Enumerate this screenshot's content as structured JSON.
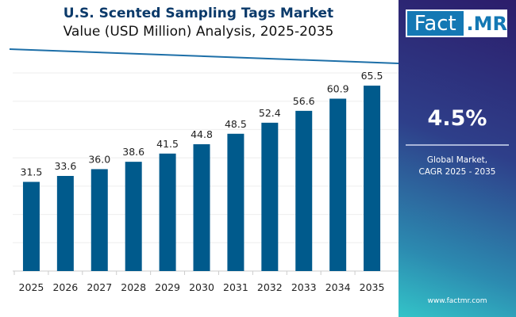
{
  "chart_data": {
    "type": "bar",
    "title": "U.S. Scented Sampling Tags  Market",
    "subtitle": "Value (USD Million) Analysis, 2025-2035",
    "categories": [
      "2025",
      "2026",
      "2027",
      "2028",
      "2029",
      "2030",
      "2031",
      "2032",
      "2033",
      "2034",
      "2035"
    ],
    "values": [
      31.5,
      33.6,
      36.0,
      38.6,
      41.5,
      44.8,
      48.5,
      52.4,
      56.6,
      60.9,
      65.5
    ],
    "ylim": [
      0,
      70
    ],
    "grid": true,
    "bar_color": "#005a8c"
  },
  "panel": {
    "logo": "Fact.MR",
    "logo_left": "Fact",
    "logo_right": ".MR",
    "cagr": "4.5%",
    "cagr_label_1": "Global Market,",
    "cagr_label_2": "CAGR 2025 - 2035",
    "url": "www.factmr.com"
  }
}
